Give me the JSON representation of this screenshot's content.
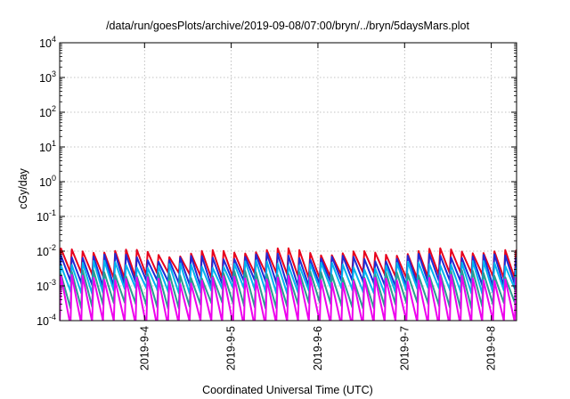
{
  "chart_data": {
    "type": "line",
    "title": "/data/run/goesPlots/archive/2019-09-08/07:00/bryn/../bryn/5daysMars.plot",
    "xlabel": "Coordinated Universal Time (UTC)",
    "ylabel": "cGy/day",
    "yscale": "log",
    "ylim": [
      0.0001,
      10000
    ],
    "xlim": [
      "2019-09-03 00:30",
      "2019-09-08 07:00"
    ],
    "grid": true,
    "y_ticks": [
      {
        "base": "10",
        "exp": "4",
        "value": 10000
      },
      {
        "base": "10",
        "exp": "3",
        "value": 1000
      },
      {
        "base": "10",
        "exp": "2",
        "value": 100
      },
      {
        "base": "10",
        "exp": "1",
        "value": 10
      },
      {
        "base": "10",
        "exp": "0",
        "value": 1
      },
      {
        "base": "10",
        "exp": "-1",
        "value": 0.1
      },
      {
        "base": "10",
        "exp": "-2",
        "value": 0.01
      },
      {
        "base": "10",
        "exp": "-3",
        "value": 0.001
      },
      {
        "base": "10",
        "exp": "-4",
        "value": 0.0001
      }
    ],
    "x_ticks": [
      {
        "label": "2019-9-4",
        "value": "2019-09-04"
      },
      {
        "label": "2019-9-5",
        "value": "2019-09-05"
      },
      {
        "label": "2019-9-6",
        "value": "2019-09-06"
      },
      {
        "label": "2019-9-7",
        "value": "2019-09-07"
      },
      {
        "label": "2019-9-8",
        "value": "2019-09-08"
      }
    ],
    "sawtooth_period_hours": 3,
    "series": [
      {
        "color": "#e8001c",
        "peak": 0.0095,
        "trough": 0.0022
      },
      {
        "color": "#1f2bd6",
        "peak": 0.0068,
        "trough": 0.0013
      },
      {
        "color": "#00b4ef",
        "peak": 0.0042,
        "trough": 0.0008
      },
      {
        "color": "#2a9d8f",
        "peak": 0.0022,
        "trough": 0.0003
      },
      {
        "color": "#ee00ee",
        "peak": 0.0016,
        "trough": 9e-05
      }
    ]
  }
}
